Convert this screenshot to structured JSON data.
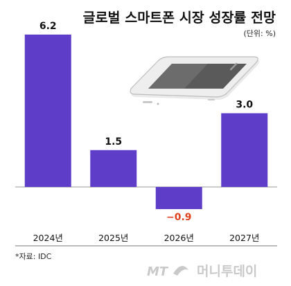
{
  "chart_data": {
    "type": "bar",
    "title": "글로벌 스마트폰 시장 성장률 전망",
    "unit_note": "(단위: %)",
    "categories": [
      "2024년",
      "2025년",
      "2026년",
      "2027년"
    ],
    "values": [
      6.2,
      1.5,
      -0.9,
      3.0
    ],
    "value_labels": [
      "6.2",
      "1.5",
      "−0.9",
      "3.0"
    ],
    "xlabel": "",
    "ylabel": "",
    "ylim": [
      -1.3,
      6.8
    ],
    "grid": false,
    "colors": {
      "bar": "#5e3ec8",
      "positive_label": "#111111",
      "negative_label": "#e0401c",
      "axis": "#888888"
    },
    "source": "*자료: IDC"
  },
  "watermark": {
    "brand_latin": "MT",
    "brand_korean": "머니투데이",
    "color": "#c9c9c9"
  },
  "illustration": {
    "icon": "smartphone-icon"
  }
}
